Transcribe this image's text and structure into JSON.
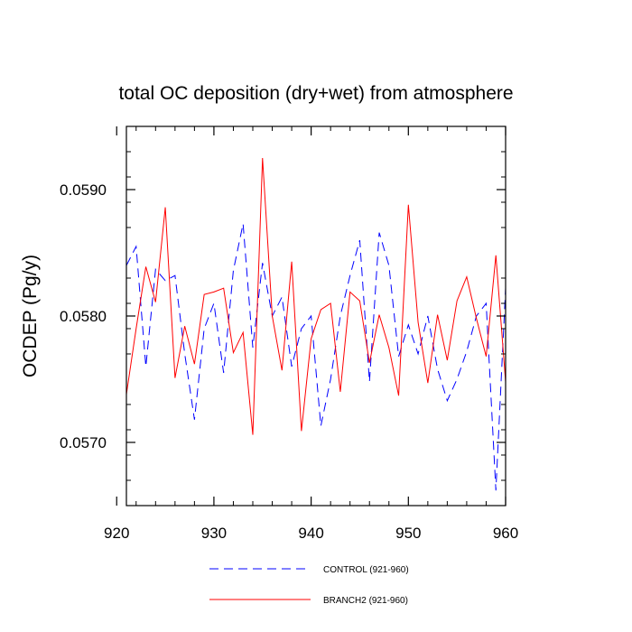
{
  "chart_data": {
    "type": "line",
    "title": "total OC deposition (dry+wet) from atmosphere",
    "xlabel": "",
    "ylabel": "OCDEP  (Pg/y)",
    "xlim": [
      921,
      960
    ],
    "ylim": [
      0.0565,
      0.0595
    ],
    "xticks": [
      920,
      930,
      940,
      950,
      960
    ],
    "xtick_labels": [
      "920",
      "930",
      "940",
      "950",
      "960"
    ],
    "yticks": [
      0.057,
      0.058,
      0.059
    ],
    "ytick_labels": [
      "0.0570",
      "0.0580",
      "0.0590"
    ],
    "grid": false,
    "legend_position": "bottom-center",
    "x": [
      921,
      922,
      923,
      924,
      925,
      926,
      927,
      928,
      929,
      930,
      931,
      932,
      933,
      934,
      935,
      936,
      937,
      938,
      939,
      940,
      941,
      942,
      943,
      944,
      945,
      946,
      947,
      948,
      949,
      950,
      951,
      952,
      953,
      954,
      955,
      956,
      957,
      958,
      959,
      960
    ],
    "series": [
      {
        "name": "CONTROL (921-960)",
        "color": "#0000ff",
        "style": "dashed",
        "values": [
          0.0584,
          0.05855,
          0.0576,
          0.05837,
          0.05828,
          0.05832,
          0.0577,
          0.05718,
          0.0579,
          0.0581,
          0.05755,
          0.05836,
          0.05873,
          0.05775,
          0.05842,
          0.058,
          0.05815,
          0.0576,
          0.0579,
          0.058,
          0.05713,
          0.0575,
          0.058,
          0.05832,
          0.0586,
          0.05748,
          0.05866,
          0.0584,
          0.05768,
          0.05793,
          0.0577,
          0.058,
          0.05758,
          0.05733,
          0.0575,
          0.05772,
          0.058,
          0.0581,
          0.05662,
          0.05822
        ]
      },
      {
        "name": "BRANCH2 (921-960)",
        "color": "#ff0000",
        "style": "solid",
        "values": [
          0.05738,
          0.0579,
          0.05839,
          0.05811,
          0.05886,
          0.05751,
          0.05792,
          0.05762,
          0.05817,
          0.05819,
          0.05822,
          0.05771,
          0.05787,
          0.05706,
          0.05925,
          0.058,
          0.05757,
          0.05843,
          0.05709,
          0.05782,
          0.05805,
          0.0581,
          0.0574,
          0.05819,
          0.05812,
          0.05763,
          0.05801,
          0.05775,
          0.05737,
          0.05888,
          0.05795,
          0.05747,
          0.05801,
          0.05765,
          0.05812,
          0.05831,
          0.05798,
          0.05768,
          0.05848,
          0.05748
        ]
      }
    ]
  }
}
